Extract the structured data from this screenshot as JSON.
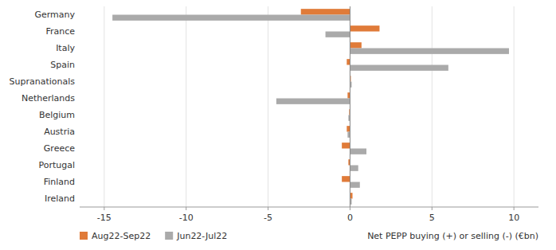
{
  "chart_data": {
    "type": "bar",
    "orientation": "horizontal",
    "categories": [
      "Ireland",
      "Finland",
      "Portugal",
      "Greece",
      "Austria",
      "Belgium",
      "Netherlands",
      "Supranationals",
      "Spain",
      "Italy",
      "France",
      "Germany"
    ],
    "series": [
      {
        "name": "Aug22-Sep22",
        "color": "#E07B39",
        "values": [
          0.15,
          -0.5,
          -0.1,
          -0.5,
          -0.2,
          -0.05,
          -0.15,
          0.05,
          -0.2,
          0.7,
          1.8,
          -3.0
        ]
      },
      {
        "name": "Jun22-Jul22",
        "color": "#AAAAAA",
        "values": [
          0.1,
          0.6,
          0.5,
          1.0,
          -0.15,
          -0.1,
          -4.5,
          0.1,
          6.0,
          9.7,
          -1.5,
          -14.5
        ]
      }
    ],
    "xlabel": "Net PEPP buying (+) or selling (-) (€bn)",
    "xlim": [
      -16.5,
      11.5
    ],
    "xticks": [
      -15,
      -10,
      -5,
      0,
      5,
      10
    ],
    "grid": true,
    "legend": "bottom"
  }
}
